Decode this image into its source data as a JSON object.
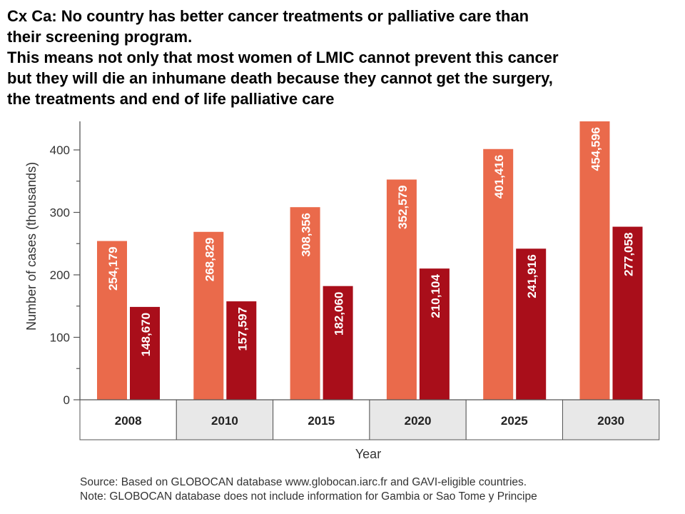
{
  "headline": {
    "line1": "Cx Ca: No country has better cancer treatments or palliative care than",
    "line2": "their screening program.",
    "line3": "This means not only that most women of LMIC cannot prevent this cancer",
    "line4": "but they will die an inhumane death because they cannot get the surgery,",
    "line5": "the treatments and end of life palliative care"
  },
  "colors": {
    "series_light": "#ea6a4b",
    "series_dark": "#a90e1a",
    "axis": "#555555",
    "year_band": "#e8e8e8"
  },
  "chart_data": {
    "type": "bar",
    "categories": [
      "2008",
      "2010",
      "2015",
      "2020",
      "2025",
      "2030"
    ],
    "series": [
      {
        "values": [
          254.179,
          268.829,
          308.356,
          352.579,
          401.416,
          454.596
        ],
        "labels": [
          "254,179",
          "268,829",
          "308,356",
          "352,579",
          "401,416",
          "454,596"
        ]
      },
      {
        "values": [
          148.67,
          157.597,
          182.06,
          210.104,
          241.916,
          277.058
        ],
        "labels": [
          "148,670",
          "157,597",
          "182,060",
          "210,104",
          "241,916",
          "277,058"
        ]
      }
    ],
    "xlabel": "Year",
    "ylabel": "Number of cases (thousands)",
    "ylim": [
      0,
      440
    ],
    "yticks": [
      0,
      100,
      200,
      300,
      400
    ],
    "grid": false
  },
  "notes": {
    "source": "Source: Based on GLOBOCAN database www.globocan.iarc.fr and GAVI-eligible countries.",
    "note": "Note: GLOBOCAN database does not include information for Gambia or Sao Tome y Principe"
  }
}
